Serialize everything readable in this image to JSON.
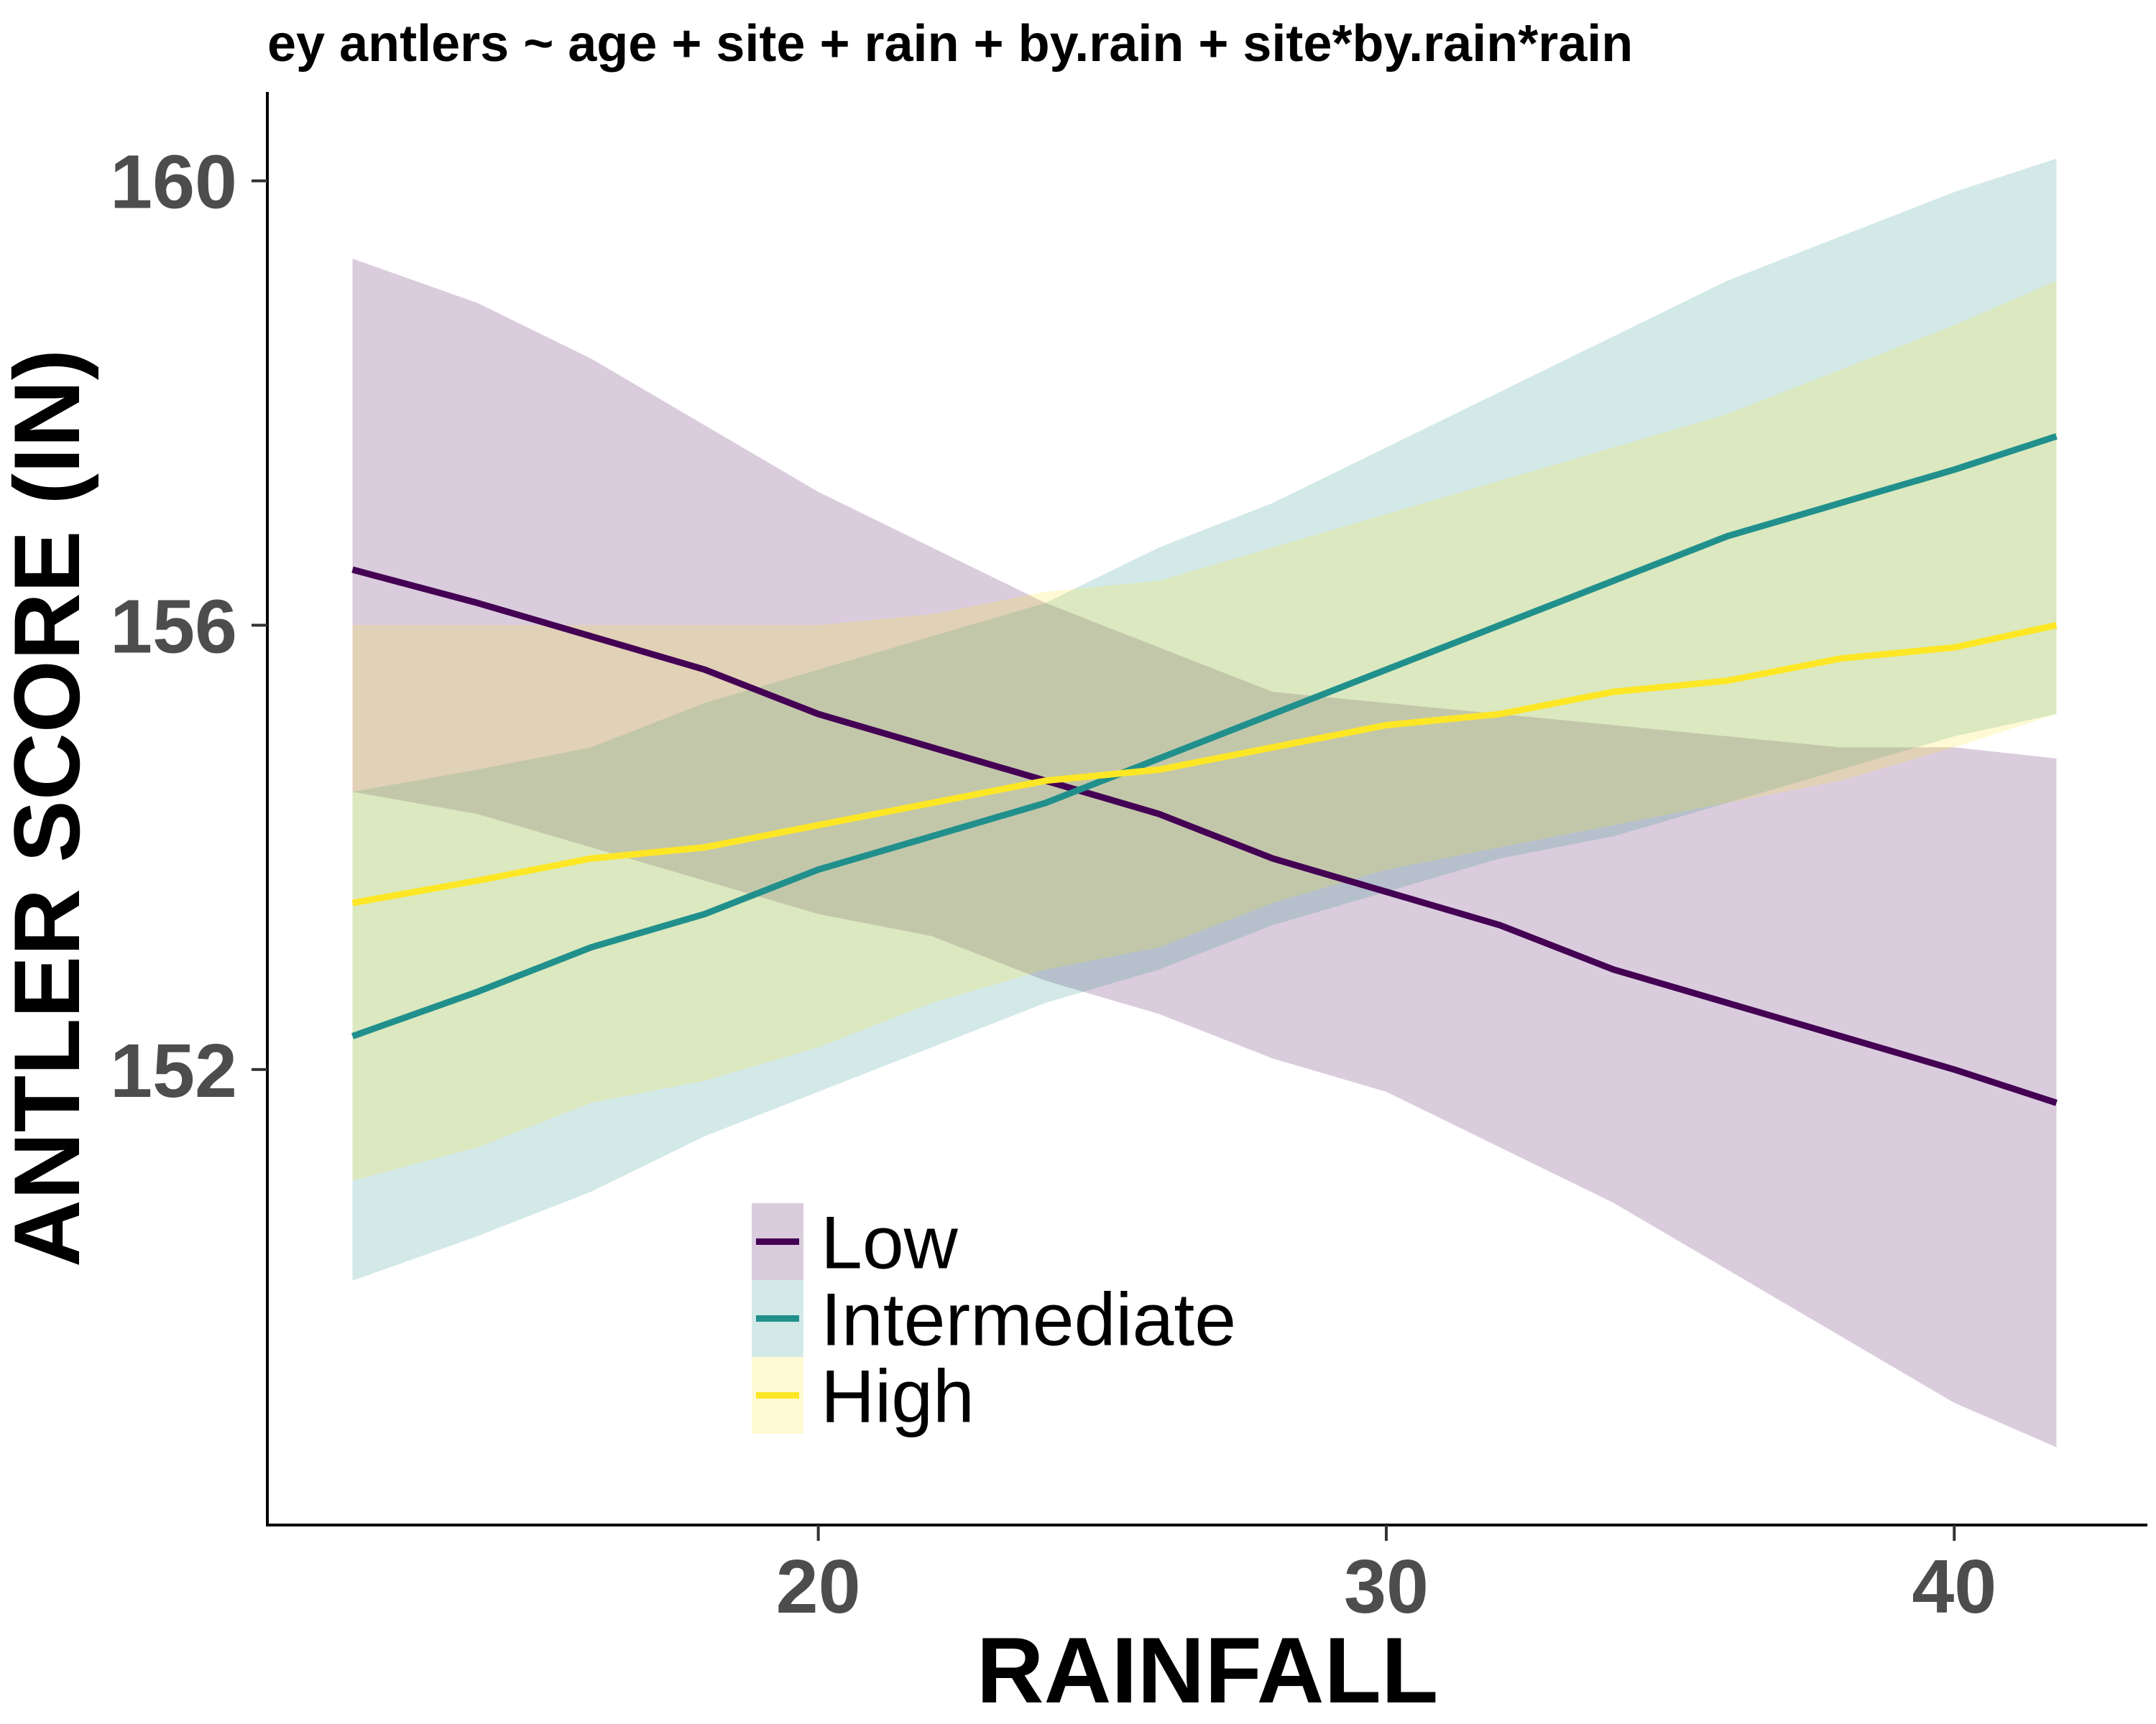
{
  "chart_data": {
    "type": "line",
    "title": "ey antlers ~ age + site + rain + by.rain + site*by.rain*rain",
    "xlabel": "RAINFALL",
    "ylabel": "ANTLER SCORE (IN)",
    "xlim": [
      10.3,
      43.4
    ],
    "ylim": [
      147.9,
      160.8
    ],
    "x_ticks": [
      {
        "value": 20,
        "label": "20"
      },
      {
        "value": 30,
        "label": "30"
      },
      {
        "value": 40,
        "label": "40"
      }
    ],
    "y_ticks": [
      {
        "value": 152,
        "label": "152"
      },
      {
        "value": 156,
        "label": "156"
      },
      {
        "value": 160,
        "label": "160"
      }
    ],
    "grid": false,
    "legend_position": "bottom-center",
    "series": [
      {
        "name": "Low",
        "color": "#440154",
        "band_color": "#440154",
        "x": [
          11.8,
          14,
          16,
          18,
          20,
          22,
          24,
          26,
          28,
          30,
          32,
          34,
          36,
          38,
          40,
          41.8
        ],
        "values": [
          156.5,
          156.2,
          155.9,
          155.6,
          155.2,
          154.9,
          154.6,
          154.3,
          153.9,
          153.6,
          153.3,
          152.9,
          152.6,
          152.3,
          152.0,
          151.7
        ],
        "lower": [
          154.5,
          154.3,
          154.0,
          153.7,
          153.4,
          153.2,
          152.8,
          152.5,
          152.1,
          151.8,
          151.3,
          150.8,
          150.2,
          149.6,
          149.0,
          148.6
        ],
        "upper": [
          159.3,
          158.9,
          158.4,
          157.8,
          157.2,
          156.7,
          156.2,
          155.8,
          155.4,
          155.3,
          155.2,
          155.1,
          155.0,
          154.9,
          154.9,
          154.8
        ]
      },
      {
        "name": "Intermediate",
        "color": "#21908c",
        "band_color": "#21908c",
        "x": [
          11.8,
          14,
          16,
          18,
          20,
          22,
          24,
          26,
          28,
          30,
          32,
          34,
          36,
          38,
          40,
          41.8
        ],
        "values": [
          152.3,
          152.7,
          153.1,
          153.4,
          153.8,
          154.1,
          154.4,
          154.8,
          155.2,
          155.6,
          156.0,
          156.4,
          156.8,
          157.1,
          157.4,
          157.7
        ],
        "lower": [
          150.1,
          150.5,
          150.9,
          151.4,
          151.8,
          152.2,
          152.6,
          152.9,
          153.3,
          153.6,
          153.9,
          154.1,
          154.4,
          154.7,
          155.0,
          155.2
        ],
        "upper": [
          154.5,
          154.7,
          154.9,
          155.3,
          155.6,
          155.9,
          156.2,
          156.7,
          157.1,
          157.6,
          158.1,
          158.6,
          159.1,
          159.5,
          159.9,
          160.2
        ]
      },
      {
        "name": "High",
        "color": "#fde725",
        "band_color": "#fde725",
        "x": [
          11.8,
          14,
          16,
          18,
          20,
          22,
          24,
          26,
          28,
          30,
          32,
          34,
          36,
          38,
          40,
          41.8
        ],
        "values": [
          153.5,
          153.7,
          153.9,
          154.0,
          154.2,
          154.4,
          154.6,
          154.7,
          154.9,
          155.1,
          155.2,
          155.4,
          155.5,
          155.7,
          155.8,
          156.0
        ],
        "lower": [
          151.0,
          151.3,
          151.7,
          151.9,
          152.2,
          152.6,
          152.9,
          153.1,
          153.5,
          153.8,
          154.0,
          154.2,
          154.4,
          154.6,
          154.9,
          155.2
        ],
        "upper": [
          156.0,
          156.0,
          156.0,
          156.0,
          156.0,
          156.1,
          156.3,
          156.4,
          156.7,
          157.0,
          157.3,
          157.6,
          157.9,
          158.3,
          158.7,
          159.1
        ]
      }
    ]
  }
}
